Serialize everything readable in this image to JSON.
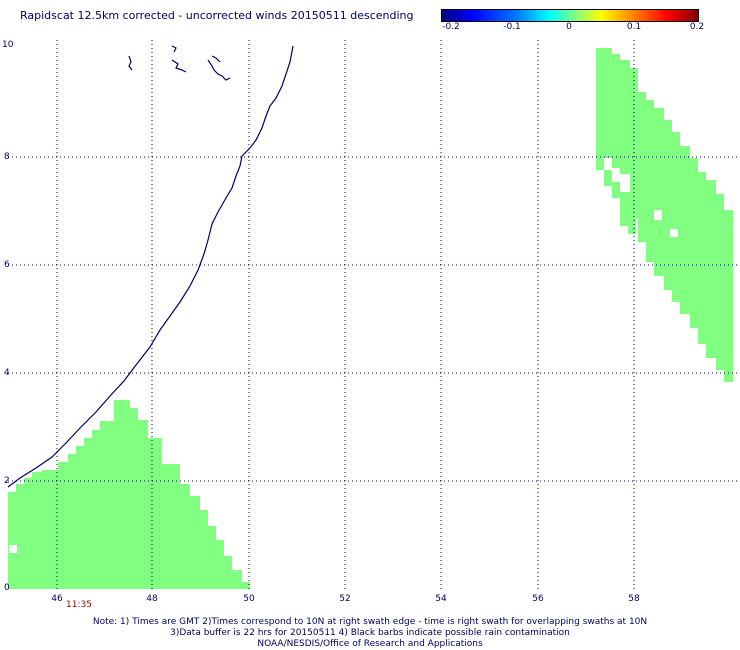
{
  "title": "Rapidscat 12.5km corrected - uncorrected winds 20150511 descending",
  "colorbar": {
    "ticks": [
      "-0.2",
      "-0.1",
      "0",
      "0.1",
      "0.2"
    ],
    "colors": [
      "#00007f",
      "#0000ff",
      "#00ffff",
      "#80ff80",
      "#ffff00",
      "#ff0000",
      "#800000"
    ]
  },
  "axes": {
    "x_ticks": [
      "46",
      "48",
      "50",
      "52",
      "54",
      "56",
      "58"
    ],
    "y_ticks": [
      "0",
      "2",
      "4",
      "6",
      "8",
      "10"
    ],
    "x_range": [
      45,
      59.9
    ],
    "y_range": [
      0,
      10
    ]
  },
  "swath_color": "#80ff80",
  "coast_color": "#000066",
  "time_label": "11:35",
  "notes": [
    "Note: 1) Times are GMT 2)Times correspond to 10N at right swath edge - time is right swath for overlapping swaths at 10N",
    "3)Data buffer is 22 hrs for 20150511 4) Black barbs indicate possible rain contamination",
    "NOAA/NESDIS/Office of Research and Applications"
  ]
}
